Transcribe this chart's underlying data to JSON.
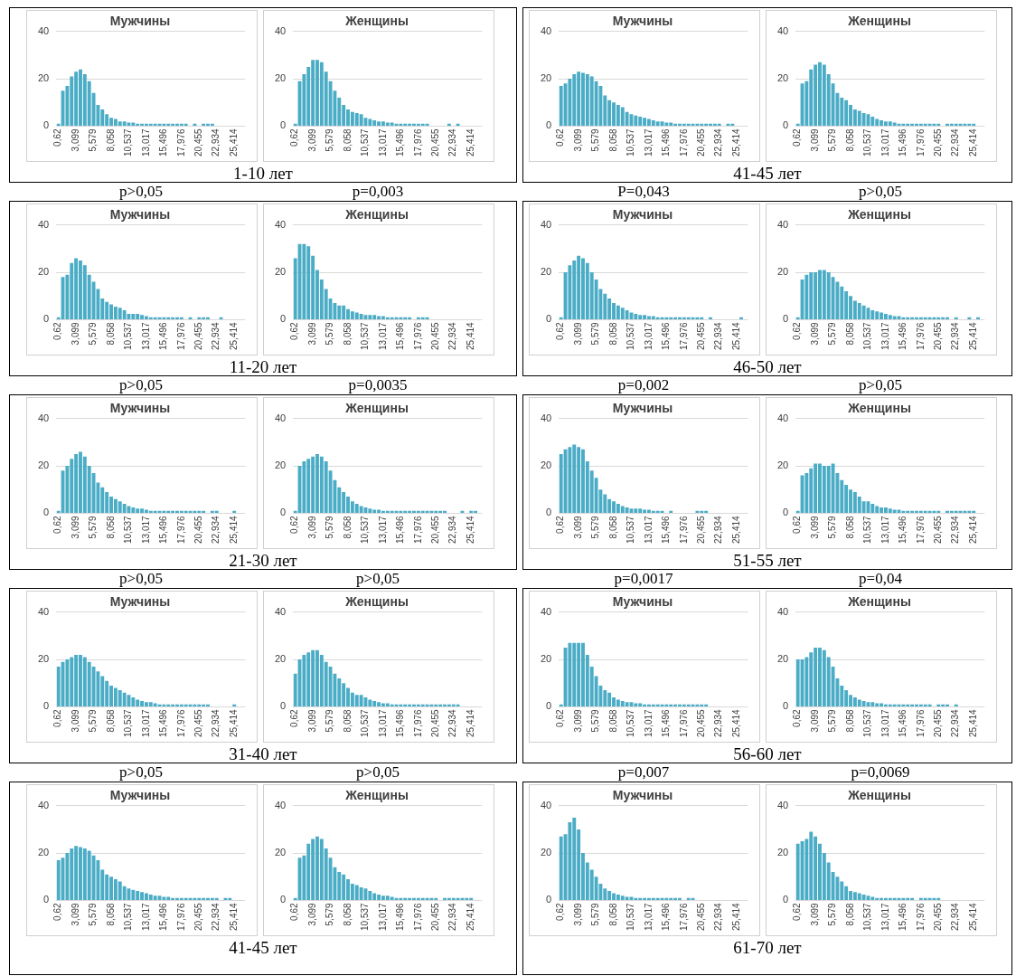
{
  "chart_data": [
    {
      "type": "bar",
      "title": "Мужчины",
      "categories": [
        "0,62",
        null,
        null,
        null,
        "3,099",
        null,
        null,
        null,
        "5,579",
        null,
        null,
        null,
        "8,058",
        null,
        null,
        null,
        "10,537",
        null,
        null,
        null,
        "13,017",
        null,
        null,
        null,
        "15,496",
        null,
        null,
        null,
        "17,976",
        null,
        null,
        null,
        "20,455",
        null,
        null,
        null,
        "22,934",
        null,
        null,
        null,
        "25,414",
        null,
        null
      ],
      "values": [
        1,
        15,
        17,
        21,
        23,
        24,
        22,
        19,
        14,
        9,
        7,
        5,
        3.5,
        3,
        2,
        2,
        1.5,
        1.5,
        1,
        1,
        1,
        1,
        1,
        1,
        1,
        1,
        1,
        1,
        1,
        1,
        0,
        1,
        0,
        1,
        1,
        1,
        0,
        0,
        0,
        0,
        0,
        0,
        0
      ],
      "color": "#4bacc6",
      "ylim": [
        0,
        40
      ],
      "yticks": [
        0,
        20,
        40
      ],
      "grid": "y",
      "annotations": [
        "1-10 лет",
        "p>0,05"
      ]
    },
    {
      "type": "bar",
      "title": "Женщины",
      "categories": [
        "0,62",
        null,
        null,
        null,
        "3,099",
        null,
        null,
        null,
        "5,579",
        null,
        null,
        null,
        "8,058",
        null,
        null,
        null,
        "10,537",
        null,
        null,
        null,
        "13,017",
        null,
        null,
        null,
        "15,496",
        null,
        null,
        null,
        "17,976",
        null,
        null,
        null,
        "20,455",
        null,
        null,
        null,
        "22,934",
        null,
        null,
        null,
        "25,414",
        null,
        null
      ],
      "values": [
        1,
        19,
        22,
        25,
        28,
        28,
        27,
        23,
        19,
        15,
        12,
        9,
        7,
        6,
        5.5,
        5,
        3.5,
        3,
        2.5,
        2,
        2,
        1.5,
        1.5,
        1,
        1,
        1,
        1,
        1,
        1,
        1,
        1,
        0,
        0,
        0,
        0,
        1,
        0,
        1,
        0,
        0,
        0,
        0,
        0
      ],
      "color": "#4bacc6",
      "ylim": [
        0,
        40
      ],
      "yticks": [
        0,
        20,
        40
      ],
      "grid": "y",
      "annotations": [
        "p=0,003"
      ]
    },
    {
      "type": "bar",
      "title": "Мужчины",
      "categories": [
        "0,62",
        null,
        null,
        null,
        "3,099",
        null,
        null,
        null,
        "5,579",
        null,
        null,
        null,
        "8,058",
        null,
        null,
        null,
        "10,537",
        null,
        null,
        null,
        "13,017",
        null,
        null,
        null,
        "15,496",
        null,
        null,
        null,
        "17,976",
        null,
        null,
        null,
        "20,455",
        null,
        null,
        null,
        "22,934",
        null,
        null,
        null,
        "25,414",
        null,
        null
      ],
      "values": [
        17,
        18,
        20,
        22,
        23,
        22.5,
        22,
        21,
        19,
        17,
        13,
        11,
        10,
        9,
        8,
        6,
        5,
        4.5,
        4,
        3.5,
        3,
        2.5,
        2,
        2,
        1.5,
        1.5,
        1,
        1,
        1,
        1,
        1,
        1,
        1,
        1,
        1,
        1,
        1,
        0,
        1,
        1,
        0,
        0,
        0
      ],
      "color": "#4bacc6",
      "ylim": [
        0,
        40
      ],
      "yticks": [
        0,
        20,
        40
      ],
      "grid": "y",
      "annotations": [
        "41-45 лет",
        "P=0,043"
      ]
    },
    {
      "type": "bar",
      "title": "Женщины",
      "categories": [
        "0,62",
        null,
        null,
        null,
        "3,099",
        null,
        null,
        null,
        "5,579",
        null,
        null,
        null,
        "8,058",
        null,
        null,
        null,
        "10,537",
        null,
        null,
        null,
        "13,017",
        null,
        null,
        null,
        "15,496",
        null,
        null,
        null,
        "17,976",
        null,
        null,
        null,
        "20,455",
        null,
        null,
        null,
        "22,934",
        null,
        null,
        null,
        "25,414",
        null,
        null
      ],
      "values": [
        1,
        18,
        19,
        24,
        26,
        27,
        26,
        22,
        18,
        14,
        12,
        11,
        9,
        7,
        6.5,
        5.5,
        5,
        4,
        3,
        2.5,
        2,
        2,
        1.5,
        1,
        1,
        1,
        1,
        1,
        1,
        1,
        1,
        1,
        1,
        0,
        1,
        1,
        1,
        1,
        1,
        1,
        1,
        0,
        0
      ],
      "color": "#4bacc6",
      "ylim": [
        0,
        40
      ],
      "yticks": [
        0,
        20,
        40
      ],
      "grid": "y",
      "annotations": [
        "p>0,05"
      ]
    },
    {
      "type": "bar",
      "title": "Мужчины",
      "categories": [
        "0,62",
        null,
        null,
        null,
        "3,099",
        null,
        null,
        null,
        "5,579",
        null,
        null,
        null,
        "8,058",
        null,
        null,
        null,
        "10,537",
        null,
        null,
        null,
        "13,017",
        null,
        null,
        null,
        "15,496",
        null,
        null,
        null,
        "17,976",
        null,
        null,
        null,
        "20,455",
        null,
        null,
        null,
        "22,934",
        null,
        null,
        null,
        "25,414",
        null,
        null
      ],
      "values": [
        1,
        18,
        19,
        24,
        26,
        25,
        23,
        19,
        16,
        13,
        9,
        7.5,
        6.5,
        5.5,
        5,
        4,
        2.5,
        2.5,
        2.5,
        2,
        1.5,
        1,
        1,
        1,
        1,
        1,
        1,
        1,
        1,
        0,
        1,
        0,
        1,
        1,
        1,
        0,
        0,
        1,
        0,
        0,
        0,
        0,
        0
      ],
      "color": "#4bacc6",
      "ylim": [
        0,
        40
      ],
      "yticks": [
        0,
        20,
        40
      ],
      "grid": "y",
      "annotations": [
        "11-20 лет",
        "p>0,05"
      ]
    },
    {
      "type": "bar",
      "title": "Женщины",
      "categories": [
        "0,62",
        null,
        null,
        null,
        "3,099",
        null,
        null,
        null,
        "5,579",
        null,
        null,
        null,
        "8,058",
        null,
        null,
        null,
        "10,537",
        null,
        null,
        null,
        "13,017",
        null,
        null,
        null,
        "15,496",
        null,
        null,
        null,
        "17,976",
        null,
        null,
        null,
        "20,455",
        null,
        null,
        null,
        "22,934",
        null,
        null,
        null,
        "25,414",
        null,
        null
      ],
      "values": [
        26,
        32,
        32,
        31,
        27,
        21,
        17,
        13,
        9,
        7,
        6,
        6,
        4.5,
        3.5,
        3,
        2.5,
        2,
        2,
        2,
        1.5,
        1.5,
        1,
        1,
        1,
        1,
        1,
        1,
        0,
        1,
        1,
        1,
        0,
        0,
        0,
        0,
        0,
        0,
        0,
        0,
        0,
        0,
        0,
        0
      ],
      "color": "#4bacc6",
      "ylim": [
        0,
        40
      ],
      "yticks": [
        0,
        20,
        40
      ],
      "grid": "y",
      "annotations": [
        "p=0,0035"
      ]
    },
    {
      "type": "bar",
      "title": "Мужчины",
      "categories": [
        "0,62",
        null,
        null,
        null,
        "3,099",
        null,
        null,
        null,
        "5,579",
        null,
        null,
        null,
        "8,058",
        null,
        null,
        null,
        "10,537",
        null,
        null,
        null,
        "13,017",
        null,
        null,
        null,
        "15,496",
        null,
        null,
        null,
        "17,976",
        null,
        null,
        null,
        "20,455",
        null,
        null,
        null,
        "22,934",
        null,
        null,
        null,
        "25,414",
        null,
        null
      ],
      "values": [
        1,
        20,
        23,
        25,
        27,
        26,
        24,
        20,
        17,
        13,
        11,
        9,
        7,
        6,
        5,
        4,
        3,
        2.5,
        2,
        2,
        1.5,
        1.5,
        1,
        1,
        1,
        1,
        1,
        1,
        1,
        1,
        1,
        1,
        1,
        0,
        1,
        0,
        0,
        0,
        0,
        0,
        0,
        1,
        0
      ],
      "color": "#4bacc6",
      "ylim": [
        0,
        40
      ],
      "yticks": [
        0,
        20,
        40
      ],
      "grid": "y",
      "annotations": [
        "46-50 лет",
        "p=0,002"
      ]
    },
    {
      "type": "bar",
      "title": "Женщины",
      "categories": [
        "0,62",
        null,
        null,
        null,
        "3,099",
        null,
        null,
        null,
        "5,579",
        null,
        null,
        null,
        "8,058",
        null,
        null,
        null,
        "10,537",
        null,
        null,
        null,
        "13,017",
        null,
        null,
        null,
        "15,496",
        null,
        null,
        null,
        "17,976",
        null,
        null,
        null,
        "20,455",
        null,
        null,
        null,
        "22,934",
        null,
        null,
        null,
        "25,414",
        null,
        null
      ],
      "values": [
        1,
        17,
        19,
        20,
        20,
        21,
        21,
        20,
        18,
        16,
        14,
        12,
        10,
        8,
        7,
        6,
        5,
        4,
        3.5,
        3,
        2.5,
        2,
        1.5,
        1.5,
        1,
        1,
        1,
        1,
        1,
        1,
        1,
        1,
        1,
        1,
        1,
        0,
        1,
        0,
        0,
        1,
        0,
        1,
        0
      ],
      "color": "#4bacc6",
      "ylim": [
        0,
        40
      ],
      "yticks": [
        0,
        20,
        40
      ],
      "grid": "y",
      "annotations": [
        "p>0,05"
      ]
    },
    {
      "type": "bar",
      "title": "Мужчины",
      "categories": [
        "0,62",
        null,
        null,
        null,
        "3,099",
        null,
        null,
        null,
        "5,579",
        null,
        null,
        null,
        "8,058",
        null,
        null,
        null,
        "10,537",
        null,
        null,
        null,
        "13,017",
        null,
        null,
        null,
        "15,496",
        null,
        null,
        null,
        "17,976",
        null,
        null,
        null,
        "20,455",
        null,
        null,
        null,
        "22,934",
        null,
        null,
        null,
        "25,414",
        null,
        null
      ],
      "values": [
        1,
        18,
        20,
        23,
        25,
        26,
        24,
        20,
        17,
        13,
        11,
        9,
        7,
        6,
        5,
        4,
        3,
        2.5,
        2,
        2,
        1.5,
        1,
        1,
        1,
        1,
        1,
        1,
        1,
        1,
        1,
        1,
        1,
        1,
        1,
        0,
        1,
        1,
        0,
        0,
        0,
        1,
        0,
        0
      ],
      "color": "#4bacc6",
      "ylim": [
        0,
        40
      ],
      "yticks": [
        0,
        20,
        40
      ],
      "grid": "y",
      "annotations": [
        "21-30 лет",
        "p>0,05"
      ]
    },
    {
      "type": "bar",
      "title": "Женщины",
      "categories": [
        "0,62",
        null,
        null,
        null,
        "3,099",
        null,
        null,
        null,
        "5,579",
        null,
        null,
        null,
        "8,058",
        null,
        null,
        null,
        "10,537",
        null,
        null,
        null,
        "13,017",
        null,
        null,
        null,
        "15,496",
        null,
        null,
        null,
        "17,976",
        null,
        null,
        null,
        "20,455",
        null,
        null,
        null,
        "22,934",
        null,
        null,
        null,
        "25,414",
        null,
        null
      ],
      "values": [
        1,
        20,
        22,
        23,
        24,
        25,
        24,
        22,
        18,
        14,
        11,
        9,
        7,
        5,
        4,
        3,
        2.5,
        2,
        1.5,
        1.5,
        1,
        1,
        1,
        1,
        1,
        1,
        1,
        1,
        1,
        1,
        1,
        1,
        1,
        1,
        1,
        0,
        0,
        0,
        1,
        0,
        1,
        1,
        0
      ],
      "color": "#4bacc6",
      "ylim": [
        0,
        40
      ],
      "yticks": [
        0,
        20,
        40
      ],
      "grid": "y",
      "annotations": [
        "p>0,05"
      ]
    },
    {
      "type": "bar",
      "title": "Мужчины",
      "categories": [
        "0,62",
        null,
        null,
        null,
        "3,099",
        null,
        null,
        null,
        "5,579",
        null,
        null,
        null,
        "8,058",
        null,
        null,
        null,
        "10,537",
        null,
        null,
        null,
        "13,017",
        null,
        null,
        null,
        "15,496",
        null,
        null,
        null,
        "17,976",
        null,
        null,
        null,
        "20,455",
        null,
        null,
        null,
        "22,934",
        null,
        null,
        null,
        "25,414",
        null,
        null
      ],
      "values": [
        25,
        27,
        28,
        29,
        28,
        27,
        22,
        18,
        15,
        10,
        8,
        6,
        5,
        4,
        3,
        2.5,
        2,
        2,
        2,
        1.5,
        1.5,
        1,
        1,
        1,
        0,
        1,
        0,
        0,
        0,
        0,
        0,
        1,
        1,
        1,
        0,
        0,
        0,
        0,
        0,
        0,
        0,
        0,
        0
      ],
      "color": "#4bacc6",
      "ylim": [
        0,
        40
      ],
      "yticks": [
        0,
        20,
        40
      ],
      "grid": "y",
      "annotations": [
        "51-55 лет",
        "p=0,0017"
      ]
    },
    {
      "type": "bar",
      "title": "Женщины",
      "categories": [
        "0,62",
        null,
        null,
        null,
        "3,099",
        null,
        null,
        null,
        "5,579",
        null,
        null,
        null,
        "8,058",
        null,
        null,
        null,
        "10,537",
        null,
        null,
        null,
        "13,017",
        null,
        null,
        null,
        "15,496",
        null,
        null,
        null,
        "17,976",
        null,
        null,
        null,
        "20,455",
        null,
        null,
        null,
        "22,934",
        null,
        null,
        null,
        "25,414",
        null,
        null
      ],
      "values": [
        1,
        16,
        17,
        19,
        21,
        21,
        20,
        20,
        21,
        17,
        14,
        12,
        10,
        9,
        7,
        5,
        5,
        4,
        3,
        2.5,
        2.5,
        2,
        1.5,
        1.5,
        1,
        1,
        1,
        1,
        1,
        1,
        1,
        1,
        1,
        0,
        1,
        1,
        1,
        1,
        1,
        1,
        1,
        0,
        0
      ],
      "color": "#4bacc6",
      "ylim": [
        0,
        40
      ],
      "yticks": [
        0,
        20,
        40
      ],
      "grid": "y",
      "annotations": [
        "p=0,04"
      ]
    },
    {
      "type": "bar",
      "title": "Мужчины",
      "categories": [
        "0,62",
        null,
        null,
        null,
        "3,099",
        null,
        null,
        null,
        "5,579",
        null,
        null,
        null,
        "8,058",
        null,
        null,
        null,
        "10,537",
        null,
        null,
        null,
        "13,017",
        null,
        null,
        null,
        "15,496",
        null,
        null,
        null,
        "17,976",
        null,
        null,
        null,
        "20,455",
        null,
        null,
        null,
        "22,934",
        null,
        null,
        null,
        "25,414",
        null,
        null
      ],
      "values": [
        17,
        19,
        20,
        21,
        22,
        22,
        21,
        19,
        17,
        15,
        13,
        11,
        9,
        8,
        7,
        6,
        5,
        4,
        3,
        2.5,
        2,
        2,
        1.5,
        1,
        1,
        1,
        1,
        1,
        1,
        1,
        1,
        1,
        1,
        1,
        1,
        0,
        0,
        0,
        0,
        0,
        1,
        0,
        0
      ],
      "color": "#4bacc6",
      "ylim": [
        0,
        40
      ],
      "yticks": [
        0,
        20,
        40
      ],
      "grid": "y",
      "annotations": [
        "31-40 лет",
        "p>0,05"
      ]
    },
    {
      "type": "bar",
      "title": "Женщины",
      "categories": [
        "0,62",
        null,
        null,
        null,
        "3,099",
        null,
        null,
        null,
        "5,579",
        null,
        null,
        null,
        "8,058",
        null,
        null,
        null,
        "10,537",
        null,
        null,
        null,
        "13,017",
        null,
        null,
        null,
        "15,496",
        null,
        null,
        null,
        "17,976",
        null,
        null,
        null,
        "20,455",
        null,
        null,
        null,
        "22,934",
        null,
        null,
        null,
        "25,414",
        null,
        null
      ],
      "values": [
        14,
        20,
        22,
        23,
        24,
        24,
        22,
        19,
        17,
        14,
        12,
        10,
        8,
        6,
        5,
        5,
        4,
        3,
        2.5,
        2,
        1.5,
        1.5,
        1,
        1,
        1,
        1,
        1,
        1,
        1,
        1,
        1,
        1,
        1,
        1,
        1,
        1,
        1,
        1,
        0,
        0,
        0,
        0,
        0
      ],
      "color": "#4bacc6",
      "ylim": [
        0,
        40
      ],
      "yticks": [
        0,
        20,
        40
      ],
      "grid": "y",
      "annotations": [
        "p>0,05"
      ]
    },
    {
      "type": "bar",
      "title": "Мужчины",
      "categories": [
        "0,62",
        null,
        null,
        null,
        "3,099",
        null,
        null,
        null,
        "5,579",
        null,
        null,
        null,
        "8,058",
        null,
        null,
        null,
        "10,537",
        null,
        null,
        null,
        "13,017",
        null,
        null,
        null,
        "15,496",
        null,
        null,
        null,
        "17,976",
        null,
        null,
        null,
        "20,455",
        null,
        null,
        null,
        "22,934",
        null,
        null,
        null,
        "25,414",
        null,
        null
      ],
      "values": [
        1,
        25,
        27,
        27,
        27,
        27,
        22,
        17,
        13,
        9,
        7,
        6,
        4,
        3,
        2.5,
        2,
        2,
        1.5,
        1.5,
        1,
        1,
        1,
        1,
        1,
        1,
        1,
        1,
        1,
        1,
        1,
        1,
        1,
        1,
        1,
        0,
        0,
        0,
        0,
        0,
        0,
        0,
        0,
        0
      ],
      "color": "#4bacc6",
      "ylim": [
        0,
        40
      ],
      "yticks": [
        0,
        20,
        40
      ],
      "grid": "y",
      "annotations": [
        "56-60 лет",
        "p=0,007"
      ]
    },
    {
      "type": "bar",
      "title": "Женщины",
      "categories": [
        "0,62",
        null,
        null,
        null,
        "3,099",
        null,
        null,
        null,
        "5,579",
        null,
        null,
        null,
        "8,058",
        null,
        null,
        null,
        "10,537",
        null,
        null,
        null,
        "13,017",
        null,
        null,
        null,
        "15,496",
        null,
        null,
        null,
        "17,976",
        null,
        null,
        null,
        "20,455",
        null,
        null,
        null,
        "22,934",
        null,
        null,
        null,
        "25,414",
        null,
        null
      ],
      "values": [
        20,
        20,
        21,
        23,
        25,
        25,
        24,
        21,
        17,
        12,
        9,
        7,
        5,
        4,
        3,
        2.5,
        2,
        2,
        1.5,
        1.5,
        1,
        1,
        1,
        1,
        1,
        1,
        1,
        1,
        1,
        1,
        1,
        0,
        1,
        1,
        1,
        0,
        1,
        0,
        0,
        0,
        0,
        0,
        0
      ],
      "color": "#4bacc6",
      "ylim": [
        0,
        40
      ],
      "yticks": [
        0,
        20,
        40
      ],
      "grid": "y",
      "annotations": [
        "p=0,0069"
      ]
    },
    {
      "type": "bar",
      "title": "Мужчины",
      "categories": [
        "0,62",
        null,
        null,
        null,
        "3,099",
        null,
        null,
        null,
        "5,579",
        null,
        null,
        null,
        "8,058",
        null,
        null,
        null,
        "10,537",
        null,
        null,
        null,
        "13,017",
        null,
        null,
        null,
        "15,496",
        null,
        null,
        null,
        "17,976",
        null,
        null,
        null,
        "20,455",
        null,
        null,
        null,
        "22,934",
        null,
        null,
        null,
        "25,414",
        null,
        null
      ],
      "values": [
        17,
        18,
        20,
        22,
        23,
        22.5,
        22,
        21,
        19,
        17,
        13,
        11,
        10,
        9,
        8,
        6,
        5,
        4.5,
        4,
        3.5,
        3,
        2.5,
        2,
        2,
        1.5,
        1.5,
        1,
        1,
        1,
        1,
        1,
        1,
        1,
        1,
        1,
        1,
        1,
        0,
        1,
        1,
        0,
        0,
        0
      ],
      "color": "#4bacc6",
      "ylim": [
        0,
        40
      ],
      "yticks": [
        0,
        20,
        40
      ],
      "grid": "y",
      "annotations": [
        "41-45 лет"
      ]
    },
    {
      "type": "bar",
      "title": "Женщины",
      "categories": [
        "0,62",
        null,
        null,
        null,
        "3,099",
        null,
        null,
        null,
        "5,579",
        null,
        null,
        null,
        "8,058",
        null,
        null,
        null,
        "10,537",
        null,
        null,
        null,
        "13,017",
        null,
        null,
        null,
        "15,496",
        null,
        null,
        null,
        "17,976",
        null,
        null,
        null,
        "20,455",
        null,
        null,
        null,
        "22,934",
        null,
        null,
        null,
        "25,414",
        null,
        null
      ],
      "values": [
        1,
        18,
        19,
        24,
        26,
        27,
        26,
        22,
        18,
        14,
        12,
        11,
        9,
        7,
        6.5,
        5.5,
        5,
        4,
        3,
        2.5,
        2,
        2,
        1.5,
        1,
        1,
        1,
        1,
        1,
        1,
        1,
        1,
        1,
        1,
        0,
        1,
        1,
        1,
        1,
        1,
        1,
        1,
        0,
        0
      ],
      "color": "#4bacc6",
      "ylim": [
        0,
        40
      ],
      "yticks": [
        0,
        20,
        40
      ],
      "grid": "y"
    },
    {
      "type": "bar",
      "title": "Мужчины",
      "categories": [
        "0,62",
        null,
        null,
        null,
        "3,099",
        null,
        null,
        null,
        "5,579",
        null,
        null,
        null,
        "8,058",
        null,
        null,
        null,
        "10,537",
        null,
        null,
        null,
        "13,017",
        null,
        null,
        null,
        "15,496",
        null,
        null,
        null,
        "17,976",
        null,
        null,
        null,
        "20,455",
        null,
        null,
        null,
        "22,934",
        null,
        null,
        null,
        "25,414",
        null,
        null
      ],
      "values": [
        27,
        28,
        33,
        35,
        30,
        20,
        16,
        13,
        10,
        7,
        5,
        4,
        3,
        2.5,
        2,
        1.5,
        1.5,
        1,
        1,
        1,
        1,
        1,
        1,
        1,
        1,
        1,
        1,
        1,
        0,
        1,
        1,
        0,
        0,
        0,
        0,
        0,
        0,
        0,
        0,
        0,
        0,
        0,
        0
      ],
      "color": "#4bacc6",
      "ylim": [
        0,
        40
      ],
      "yticks": [
        0,
        20,
        40
      ],
      "grid": "y",
      "annotations": [
        "61-70 лет"
      ]
    },
    {
      "type": "bar",
      "title": "Женщины",
      "categories": [
        "0,62",
        null,
        null,
        null,
        "3,099",
        null,
        null,
        null,
        "5,579",
        null,
        null,
        null,
        "8,058",
        null,
        null,
        null,
        "10,537",
        null,
        null,
        null,
        "13,017",
        null,
        null,
        null,
        "15,496",
        null,
        null,
        null,
        "17,976",
        null,
        null,
        null,
        "20,455",
        null,
        null,
        null,
        "22,934",
        null,
        null,
        null,
        "25,414",
        null,
        null
      ],
      "values": [
        24,
        25,
        26,
        29,
        27,
        24,
        20,
        16,
        12,
        10,
        8,
        6,
        4,
        3.5,
        3,
        2.5,
        2,
        1.5,
        1,
        1,
        1,
        1,
        1,
        1,
        1,
        1,
        1,
        0,
        1,
        1,
        1,
        1,
        1,
        0,
        0,
        0,
        0,
        0,
        0,
        0,
        0,
        0,
        0
      ],
      "color": "#4bacc6",
      "ylim": [
        0,
        40
      ],
      "yticks": [
        0,
        20,
        40
      ],
      "grid": "y"
    }
  ]
}
